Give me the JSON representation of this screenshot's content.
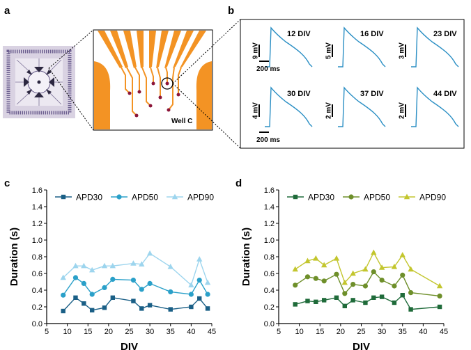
{
  "panel_labels": {
    "a": "a",
    "b": "b",
    "c": "c",
    "d": "d"
  },
  "panel_a": {
    "well_label": "Well C",
    "colors": {
      "electrode": "#f39324",
      "chip_frame": "#8a7fae",
      "chip_bg": "#e9e4ef",
      "dot": "#8b1538"
    }
  },
  "panel_b": {
    "trace_color": "#2b8fc4",
    "traces": [
      {
        "div_label": "12 DIV",
        "mv_label": "9 mV"
      },
      {
        "div_label": "16 DIV",
        "mv_label": "5 mV"
      },
      {
        "div_label": "23 DIV",
        "mv_label": "3 mV"
      },
      {
        "div_label": "30 DIV",
        "mv_label": "4 mV"
      },
      {
        "div_label": "37 DIV",
        "mv_label": "2 mV"
      },
      {
        "div_label": "44 DIV",
        "mv_label": "2 mV"
      }
    ],
    "time_scale_labels": [
      "200 ms",
      "200 ms"
    ]
  },
  "chart_data": [
    {
      "id": "c",
      "type": "line",
      "xlabel": "DIV",
      "ylabel": "Duration (s)",
      "xlim": [
        5,
        45
      ],
      "ylim": [
        0.0,
        1.6
      ],
      "xticks": [
        5,
        10,
        15,
        20,
        25,
        30,
        35,
        40,
        45
      ],
      "yticks": [
        0.0,
        0.2,
        0.4,
        0.6,
        0.8,
        1.0,
        1.2,
        1.4,
        1.6
      ],
      "xtick_labels": [
        "5",
        "10",
        "15",
        "20",
        "25",
        "30",
        "35",
        "40",
        "45"
      ],
      "ytick_labels": [
        "0.0",
        "0.2",
        "0.4",
        "0.6",
        "0.8",
        "1.0",
        "1.2",
        "1.4",
        "1.6"
      ],
      "legend_position": "top",
      "series": [
        {
          "name": "APD30",
          "marker": "square",
          "color": "#1a5f86",
          "x": [
            9,
            12,
            14,
            16,
            19,
            21,
            26,
            28,
            30,
            35,
            40,
            42,
            44
          ],
          "y": [
            0.15,
            0.31,
            0.24,
            0.16,
            0.19,
            0.31,
            0.27,
            0.18,
            0.22,
            0.17,
            0.2,
            0.3,
            0.18
          ]
        },
        {
          "name": "APD50",
          "marker": "circle",
          "color": "#2aa0c9",
          "x": [
            9,
            12,
            14,
            16,
            19,
            21,
            26,
            28,
            30,
            35,
            40,
            42,
            44
          ],
          "y": [
            0.34,
            0.55,
            0.48,
            0.35,
            0.43,
            0.53,
            0.52,
            0.41,
            0.48,
            0.38,
            0.35,
            0.52,
            0.35
          ]
        },
        {
          "name": "APD90",
          "marker": "triangle",
          "color": "#9dd5ee",
          "x": [
            9,
            12,
            14,
            16,
            19,
            21,
            26,
            28,
            30,
            35,
            40,
            42,
            44
          ],
          "y": [
            0.55,
            0.69,
            0.69,
            0.64,
            0.69,
            0.69,
            0.72,
            0.71,
            0.84,
            0.68,
            0.46,
            0.77,
            0.49
          ]
        }
      ]
    },
    {
      "id": "d",
      "type": "line",
      "xlabel": "DIV",
      "ylabel": "Duration (s)",
      "xlim": [
        5,
        45
      ],
      "ylim": [
        0.0,
        1.6
      ],
      "xticks": [
        5,
        10,
        15,
        20,
        25,
        30,
        35,
        40,
        45
      ],
      "yticks": [
        0.0,
        0.2,
        0.4,
        0.6,
        0.8,
        1.0,
        1.2,
        1.4,
        1.6
      ],
      "xtick_labels": [
        "5",
        "10",
        "15",
        "20",
        "25",
        "30",
        "35",
        "40",
        "45"
      ],
      "ytick_labels": [
        "0.0",
        "0.2",
        "0.4",
        "0.6",
        "0.8",
        "1.0",
        "1.2",
        "1.4",
        "1.6"
      ],
      "legend_position": "top",
      "series": [
        {
          "name": "APD30",
          "marker": "square",
          "color": "#1f6b3a",
          "x": [
            9,
            12,
            14,
            16,
            19,
            21,
            23,
            26,
            28,
            30,
            33,
            35,
            37,
            44
          ],
          "y": [
            0.23,
            0.27,
            0.26,
            0.28,
            0.31,
            0.21,
            0.28,
            0.25,
            0.31,
            0.32,
            0.25,
            0.34,
            0.17,
            0.2
          ]
        },
        {
          "name": "APD50",
          "marker": "circle",
          "color": "#6e8f2a",
          "x": [
            9,
            12,
            14,
            16,
            19,
            21,
            23,
            26,
            28,
            30,
            33,
            35,
            37,
            44
          ],
          "y": [
            0.46,
            0.56,
            0.54,
            0.51,
            0.59,
            0.36,
            0.47,
            0.45,
            0.62,
            0.52,
            0.45,
            0.58,
            0.37,
            0.33
          ]
        },
        {
          "name": "APD90",
          "marker": "triangle",
          "color": "#c3c62e",
          "x": [
            9,
            12,
            14,
            16,
            19,
            21,
            23,
            26,
            28,
            30,
            33,
            35,
            37,
            44
          ],
          "y": [
            0.65,
            0.75,
            0.78,
            0.7,
            0.78,
            0.49,
            0.6,
            0.65,
            0.85,
            0.67,
            0.68,
            0.82,
            0.65,
            0.45
          ]
        }
      ]
    }
  ]
}
